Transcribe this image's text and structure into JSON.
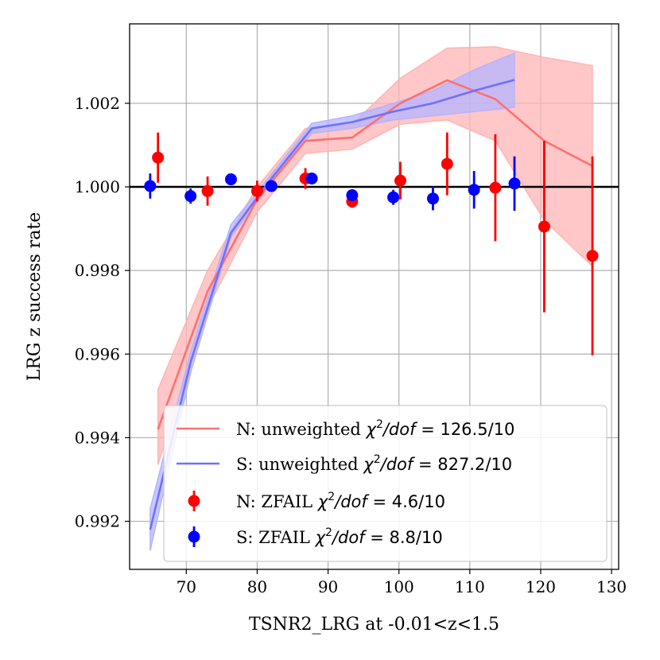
{
  "chart_data": {
    "type": "line",
    "xlabel": "TSNR2_LRG at -0.01<z<1.5",
    "ylabel": "LRG z success rate",
    "xlim": [
      62,
      131
    ],
    "ylim": [
      0.99085,
      1.0039
    ],
    "xticks": [
      70,
      80,
      90,
      100,
      110,
      120,
      130
    ],
    "yticks": [
      0.992,
      0.994,
      0.996,
      0.998,
      1.0,
      1.002
    ],
    "ytick_labels": [
      "0.992",
      "0.994",
      "0.996",
      "0.998",
      "1.000",
      "1.002"
    ],
    "grid": true,
    "reference_line": 1.0,
    "legend_position": "lower-right",
    "colors": {
      "N": "#ff0000",
      "S": "#0000ff",
      "N_line": "#ff7070",
      "S_line": "#7070ff",
      "N_band": "#ffb4b4",
      "S_band": "#b4b4ff"
    },
    "series": [
      {
        "kind": "line_band",
        "color_key": "N",
        "legend": {
          "prefix": "N: unweighted ",
          "stat": "126.5/10"
        },
        "x": [
          66.0,
          73.0,
          80.0,
          86.8,
          93.4,
          100.2,
          106.8,
          113.6,
          120.5,
          127.3
        ],
        "y": [
          0.9942,
          0.9975,
          0.9997,
          1.0011,
          1.00118,
          1.002,
          1.00255,
          1.0021,
          1.0011,
          1.0005
        ],
        "lower": [
          0.99335,
          0.9971,
          0.9994,
          1.0008,
          1.0009,
          1.0015,
          1.0016,
          1.0011,
          0.9992,
          0.9981
        ],
        "upper": [
          0.99515,
          0.998,
          1.0,
          1.0014,
          1.0015,
          1.0026,
          1.00332,
          1.00335,
          1.0031,
          1.0029
        ]
      },
      {
        "kind": "line_band",
        "color_key": "S",
        "legend": {
          "prefix": "S: unweighted ",
          "stat": "827.2/10"
        },
        "x": [
          64.9,
          70.6,
          76.3,
          82.0,
          87.7,
          93.4,
          99.2,
          104.8,
          110.6,
          116.3
        ],
        "y": [
          0.9918,
          0.9958,
          0.9989,
          1.0002,
          1.0014,
          1.00155,
          1.0018,
          1.002,
          1.0023,
          1.00256
        ],
        "lower": [
          0.9913,
          0.99555,
          0.9988,
          1.0001,
          1.00128,
          1.0014,
          1.0016,
          1.0017,
          1.0018,
          1.0019
        ],
        "upper": [
          0.9923,
          0.99605,
          0.9991,
          1.0003,
          1.00152,
          1.0017,
          1.002,
          1.0023,
          1.0028,
          1.0032
        ]
      },
      {
        "kind": "errorbar",
        "color_key": "N",
        "legend": {
          "prefix": "N: ZFAIL ",
          "stat": "4.6/10"
        },
        "x": [
          66.0,
          73.0,
          80.0,
          86.8,
          93.4,
          100.2,
          106.8,
          113.6,
          120.5,
          127.3
        ],
        "y": [
          1.0007,
          0.9999,
          0.9999,
          1.0002,
          0.99965,
          1.00015,
          1.00055,
          0.99998,
          0.99905,
          0.99835
        ],
        "err": [
          0.0006,
          0.00035,
          0.00025,
          0.00025,
          0.00015,
          0.00045,
          0.00075,
          0.00128,
          0.00205,
          0.00238
        ]
      },
      {
        "kind": "errorbar",
        "color_key": "S",
        "legend": {
          "prefix": "S: ZFAIL ",
          "stat": "8.8/10"
        },
        "x": [
          64.9,
          70.6,
          76.3,
          82.0,
          87.7,
          93.4,
          99.2,
          104.8,
          110.6,
          116.3
        ],
        "y": [
          1.00002,
          0.99978,
          1.00018,
          1.00002,
          1.0002,
          0.9998,
          0.99975,
          0.99972,
          0.99993,
          1.00008
        ],
        "err": [
          0.0003,
          0.00018,
          0.0001,
          0.0001,
          0.0001,
          0.00012,
          0.00018,
          0.00028,
          0.00045,
          0.00065
        ]
      }
    ]
  }
}
